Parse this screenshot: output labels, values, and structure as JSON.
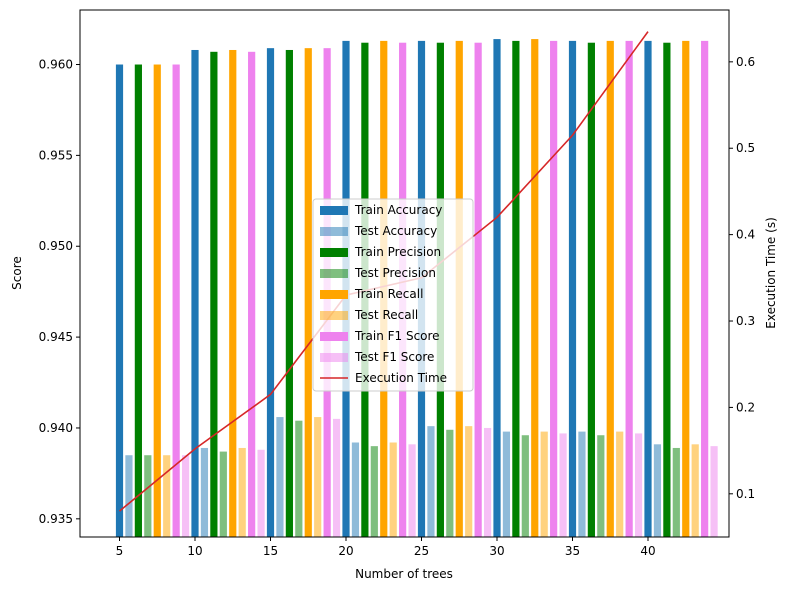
{
  "chart_data": {
    "type": "bar",
    "title": "",
    "xlabel": "Number of trees",
    "ylabel": "Score",
    "y2label": "Execution Time (s)",
    "categories": [
      "5",
      "10",
      "15",
      "20",
      "25",
      "30",
      "35",
      "40"
    ],
    "x": [
      5,
      10,
      15,
      20,
      25,
      30,
      35,
      40
    ],
    "ylim": [
      0.934,
      0.963
    ],
    "y2lim": [
      0.05,
      0.66
    ],
    "yticks": [
      "0.935",
      "0.940",
      "0.945",
      "0.950",
      "0.955",
      "0.960"
    ],
    "y2ticks": [
      "0.1",
      "0.2",
      "0.3",
      "0.4",
      "0.5",
      "0.6"
    ],
    "grid": false,
    "legend_position": "center",
    "series": [
      {
        "name": "Train Accuracy",
        "color": "#1f77b4",
        "opacity": 1.0,
        "values": [
          0.96,
          0.9608,
          0.9609,
          0.9613,
          0.9613,
          0.9614,
          0.9613,
          0.9613
        ]
      },
      {
        "name": "Test Accuracy",
        "color": "#1f77b4",
        "opacity": 0.5,
        "values": [
          0.9385,
          0.9389,
          0.9406,
          0.9392,
          0.9401,
          0.9398,
          0.9398,
          0.9391
        ]
      },
      {
        "name": "Train Precision",
        "color": "#008000",
        "opacity": 1.0,
        "values": [
          0.96,
          0.9607,
          0.9608,
          0.9612,
          0.9612,
          0.9613,
          0.9612,
          0.9612
        ]
      },
      {
        "name": "Test Precision",
        "color": "#008000",
        "opacity": 0.5,
        "values": [
          0.9385,
          0.9387,
          0.9404,
          0.939,
          0.9399,
          0.9396,
          0.9396,
          0.9389
        ]
      },
      {
        "name": "Train Recall",
        "color": "#ffa500",
        "opacity": 1.0,
        "values": [
          0.96,
          0.9608,
          0.9609,
          0.9613,
          0.9613,
          0.9614,
          0.9613,
          0.9613
        ]
      },
      {
        "name": "Test Recall",
        "color": "#ffa500",
        "opacity": 0.5,
        "values": [
          0.9385,
          0.9389,
          0.9406,
          0.9392,
          0.9401,
          0.9398,
          0.9398,
          0.9391
        ]
      },
      {
        "name": "Train F1 Score",
        "color": "#ee82ee",
        "opacity": 1.0,
        "values": [
          0.96,
          0.9607,
          0.9609,
          0.9612,
          0.9612,
          0.9613,
          0.9613,
          0.9613
        ]
      },
      {
        "name": "Test F1 Score",
        "color": "#ee82ee",
        "opacity": 0.5,
        "values": [
          0.9385,
          0.9388,
          0.9405,
          0.9391,
          0.94,
          0.9397,
          0.9397,
          0.939
        ]
      }
    ],
    "line_series": {
      "name": "Execution Time",
      "color": "#d62728",
      "axis": "right",
      "values": [
        0.08,
        0.152,
        0.215,
        0.33,
        0.35,
        0.42,
        0.515,
        0.635
      ]
    }
  }
}
